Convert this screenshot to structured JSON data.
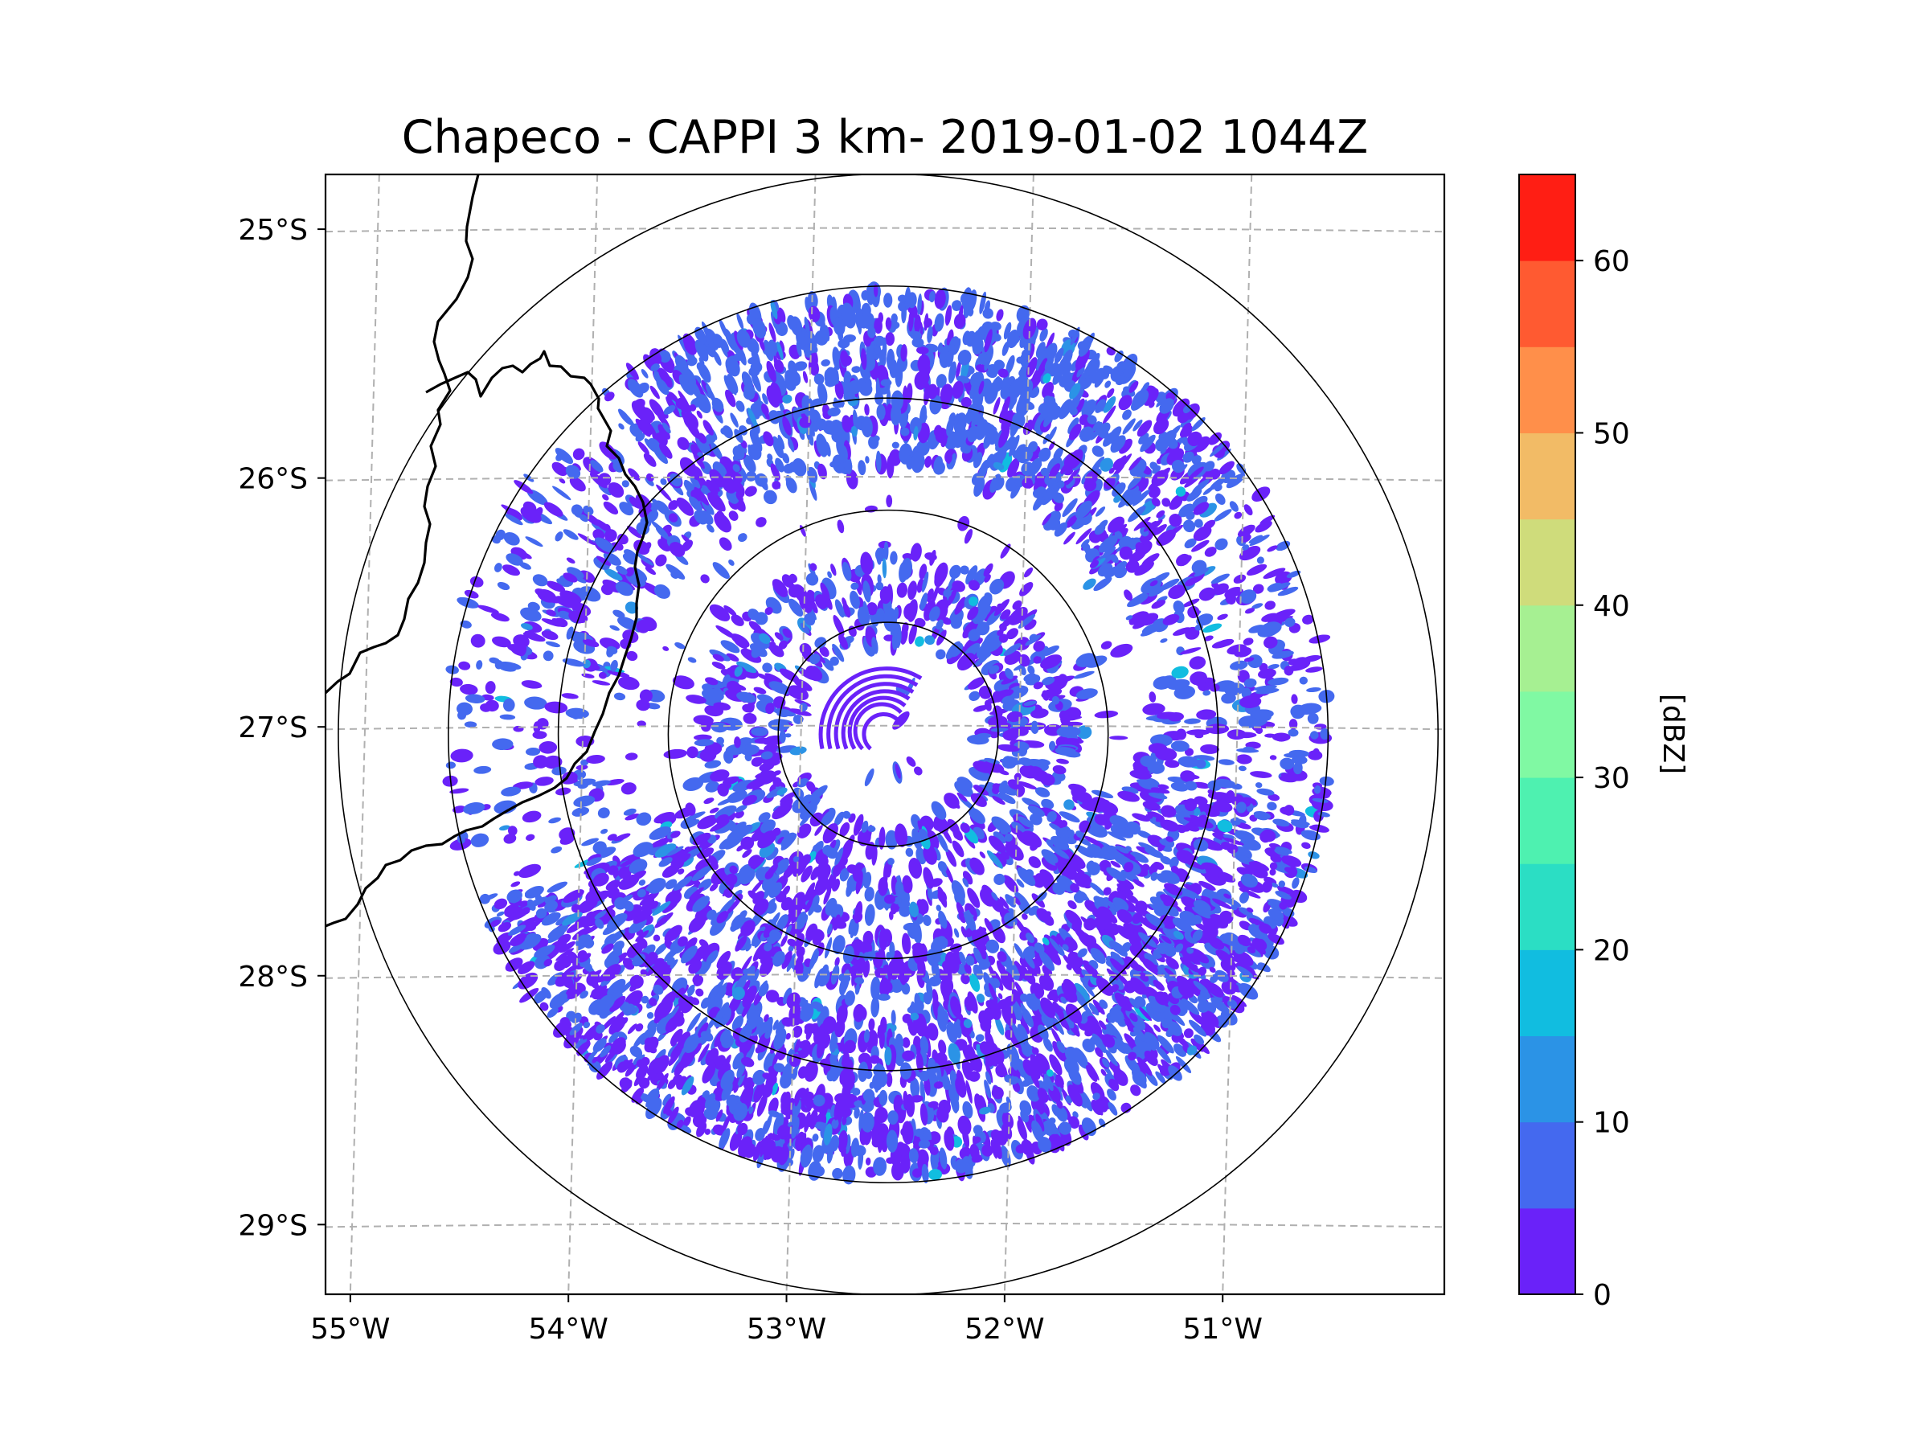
{
  "chart_data": {
    "type": "radar_map",
    "title": "Chapeco - CAPPI 3 km- 2019-01-02 1044Z",
    "map_extent": {
      "lon": [
        -55.18,
        -50.05
      ],
      "lat": [
        -29.28,
        -24.78
      ]
    },
    "radar_center": {
      "lon": -52.6,
      "lat": -27.03
    },
    "range_rings_km": [
      50,
      100,
      150,
      200,
      250
    ],
    "x_ticks": [
      {
        "lon": -55,
        "label": "55°W"
      },
      {
        "lon": -54,
        "label": "54°W"
      },
      {
        "lon": -53,
        "label": "53°W"
      },
      {
        "lon": -52,
        "label": "52°W"
      },
      {
        "lon": -51,
        "label": "51°W"
      }
    ],
    "y_ticks": [
      {
        "lat": -25,
        "label": "25°S"
      },
      {
        "lat": -26,
        "label": "26°S"
      },
      {
        "lat": -27,
        "label": "27°S"
      },
      {
        "lat": -28,
        "label": "28°S"
      },
      {
        "lat": -29,
        "label": "29°S"
      }
    ],
    "gridlines": true,
    "colorbar": {
      "label": "[dBZ]",
      "range": [
        0,
        65
      ],
      "levels": [
        0,
        5,
        10,
        15,
        20,
        25,
        30,
        35,
        40,
        45,
        50,
        55,
        60,
        65
      ],
      "colors": [
        "#6a22f9",
        "#4469ef",
        "#2b93e6",
        "#11bde0",
        "#2bdec4",
        "#4ef1b0",
        "#80f9a3",
        "#a6f092",
        "#cfdc7b",
        "#f2bb66",
        "#ff8f4a",
        "#ff5a31",
        "#ff1e14"
      ],
      "tick_values": [
        0,
        10,
        20,
        30,
        40,
        50,
        60
      ],
      "tick_labels": [
        "0",
        "10",
        "20",
        "30",
        "40",
        "50",
        "60"
      ]
    },
    "dominant_echo_range_dbz": [
      0,
      10
    ],
    "colors": {
      "weak_echo": "#6a22f9",
      "moderate_echo": "#4a5ef0",
      "grid": "#b0b0b0",
      "border": "#000000"
    }
  }
}
